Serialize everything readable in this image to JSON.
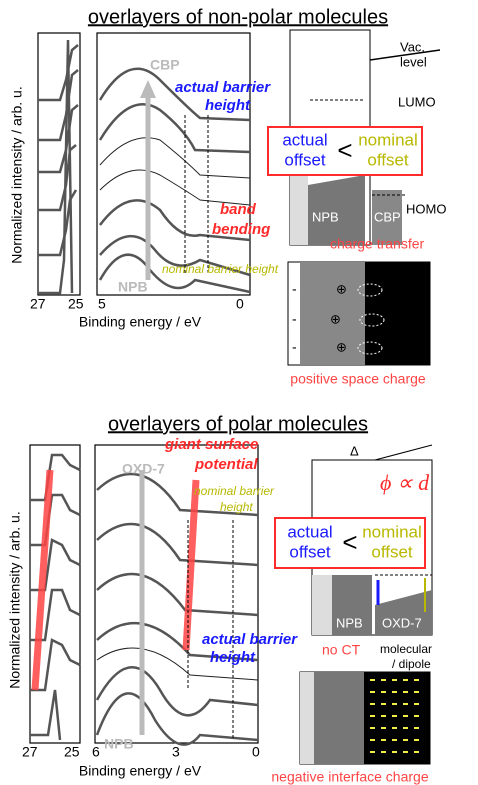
{
  "top": {
    "title": "overlayers of non-polar molecules",
    "y_label": "Normalized intensity / arb. u.",
    "x_label": "Binding energy / eV",
    "left_ticks": [
      "27",
      "25"
    ],
    "right_ticks": [
      "5",
      "0"
    ],
    "film": "CBP",
    "substrate": "NPB",
    "actual_barrier": [
      "actual barrier",
      "height"
    ],
    "band_bending": [
      "band",
      "bending"
    ],
    "nominal_barrier": "nominal barrier height",
    "diagram": {
      "vac": [
        "Vac.",
        "level"
      ],
      "lumo": "LUMO",
      "homo": "HOMO",
      "left_layer": "NPB",
      "right_layer": "CBP",
      "actual": [
        "actual",
        "offset"
      ],
      "less": "<",
      "nominal": [
        "nominal",
        "offset"
      ],
      "charge_transfer": "charge transfer",
      "space_charge": "positive space charge"
    }
  },
  "bottom": {
    "title": "overlayers of polar molecules",
    "y_label": "Normalized intensity / arb. u.",
    "x_label": "Binding energy / eV",
    "left_ticks": [
      "27",
      "25"
    ],
    "right_ticks": [
      "6",
      "3",
      "0"
    ],
    "film": "OXD-7",
    "substrate": "NPB",
    "surface_potential": [
      "giant surface",
      "potential"
    ],
    "nominal_barrier": [
      "nominal barrier",
      "height"
    ],
    "actual_barrier": [
      "actual barrier",
      "height"
    ],
    "diagram": {
      "delta": "Δ",
      "phi": "ϕ ∝ d",
      "left_layer": "NPB",
      "right_layer": "OXD-7",
      "actual": [
        "actual",
        "offset"
      ],
      "less": "<",
      "nominal": [
        "nominal",
        "offset"
      ],
      "no_ct": "no CT",
      "dipole": [
        "molecular",
        "/ dipole"
      ],
      "interface_charge": "negative interface charge"
    }
  }
}
